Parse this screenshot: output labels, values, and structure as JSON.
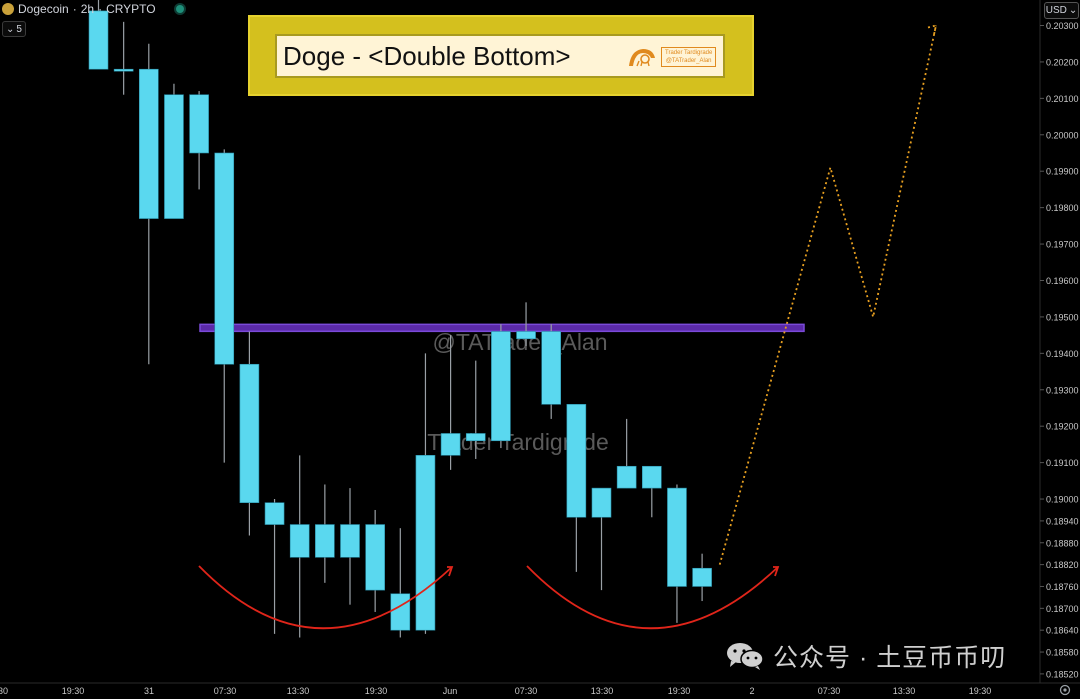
{
  "header": {
    "symbol": "Dogecoin",
    "interval": "2h",
    "market": "CRYPTO",
    "interval_selector": "5",
    "currency": "USD"
  },
  "title": {
    "text": "Doge - <Double Bottom>",
    "logo_line1": "Trader Tardigrade",
    "logo_line2": "@TATrader_Alan"
  },
  "overlays": {
    "watermark_1": "@TATrader_Alan",
    "watermark_2": "Trader Tardigrade",
    "footer_watermark": "公众号 · 土豆币币叨"
  },
  "colors": {
    "candle_body": "#5ad8ef",
    "candle_wick": "#9aa0a6",
    "resistance_line": "#5b2aa8",
    "resistance_border": "#7a4ad8",
    "arcs": "#e0251a",
    "projection": "#e8a020",
    "background": "#000000"
  },
  "chart_data": {
    "type": "candlestick",
    "ylim": [
      0.18495,
      0.2037
    ],
    "price_axis": [
      "0.20300",
      "0.20200",
      "0.20100",
      "0.20000",
      "0.19900",
      "0.19800",
      "0.19700",
      "0.19600",
      "0.19500",
      "0.19400",
      "0.19300",
      "0.19200",
      "0.19100",
      "0.19000",
      "0.18940",
      "0.18880",
      "0.18820",
      "0.18760",
      "0.18700",
      "0.18640",
      "0.18580",
      "0.18520"
    ],
    "time_axis": [
      "30",
      "19:30",
      "31",
      "07:30",
      "13:30",
      "19:30",
      "Jun",
      "07:30",
      "13:30",
      "19:30",
      "2",
      "07:30",
      "13:30",
      "19:30"
    ],
    "candles": [
      {
        "o": 0.2034,
        "h": 0.2037,
        "l": 0.2018,
        "c": 0.2018
      },
      {
        "o": 0.2018,
        "h": 0.2031,
        "l": 0.2011,
        "c": 0.2018
      },
      {
        "o": 0.2018,
        "h": 0.2025,
        "l": 0.1937,
        "c": 0.1977
      },
      {
        "o": 0.1977,
        "h": 0.2014,
        "l": 0.1977,
        "c": 0.2011
      },
      {
        "o": 0.2011,
        "h": 0.2012,
        "l": 0.1985,
        "c": 0.1995
      },
      {
        "o": 0.1995,
        "h": 0.1996,
        "l": 0.191,
        "c": 0.1937
      },
      {
        "o": 0.1937,
        "h": 0.1946,
        "l": 0.189,
        "c": 0.1899
      },
      {
        "o": 0.1899,
        "h": 0.19,
        "l": 0.1863,
        "c": 0.1893
      },
      {
        "o": 0.1893,
        "h": 0.1912,
        "l": 0.1862,
        "c": 0.1884
      },
      {
        "o": 0.1884,
        "h": 0.1904,
        "l": 0.1877,
        "c": 0.1893
      },
      {
        "o": 0.1893,
        "h": 0.1903,
        "l": 0.1871,
        "c": 0.1884
      },
      {
        "o": 0.1893,
        "h": 0.1897,
        "l": 0.1869,
        "c": 0.1875
      },
      {
        "o": 0.1874,
        "h": 0.1892,
        "l": 0.1862,
        "c": 0.1864
      },
      {
        "o": 0.1864,
        "h": 0.194,
        "l": 0.1863,
        "c": 0.1912
      },
      {
        "o": 0.1912,
        "h": 0.1945,
        "l": 0.1908,
        "c": 0.1918
      },
      {
        "o": 0.1918,
        "h": 0.1938,
        "l": 0.1911,
        "c": 0.1916
      },
      {
        "o": 0.1916,
        "h": 0.1948,
        "l": 0.1914,
        "c": 0.1946
      },
      {
        "o": 0.1944,
        "h": 0.1954,
        "l": 0.1942,
        "c": 0.1946
      },
      {
        "o": 0.1946,
        "h": 0.1948,
        "l": 0.1922,
        "c": 0.1926
      },
      {
        "o": 0.1926,
        "h": 0.1926,
        "l": 0.188,
        "c": 0.1895
      },
      {
        "o": 0.1895,
        "h": 0.1902,
        "l": 0.1875,
        "c": 0.1903
      },
      {
        "o": 0.1909,
        "h": 0.1922,
        "l": 0.1903,
        "c": 0.1903
      },
      {
        "o": 0.1909,
        "h": 0.1909,
        "l": 0.1895,
        "c": 0.1903
      },
      {
        "o": 0.1903,
        "h": 0.1904,
        "l": 0.1866,
        "c": 0.1876
      },
      {
        "o": 0.1876,
        "h": 0.1885,
        "l": 0.1872,
        "c": 0.1881
      }
    ],
    "resistance_level": 0.1947,
    "projection_path": [
      {
        "candle": 24.7,
        "price": 0.1882
      },
      {
        "candle": 29.1,
        "price": 0.1991
      },
      {
        "candle": 30.8,
        "price": 0.195
      },
      {
        "candle": 33.3,
        "price": 0.203
      }
    ]
  }
}
